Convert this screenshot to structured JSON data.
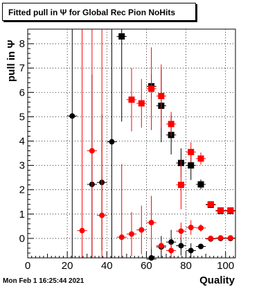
{
  "title": "Fitted pull in  Ψ  for Global Rec Pion NoHits",
  "timestamp": "Mon Feb  1 16:25:44 2021",
  "chart_data": {
    "type": "scatter",
    "title": "Fitted pull in  Ψ  for Global Rec Pion NoHits",
    "xlabel": "Quality",
    "ylabel": "pull in  Ψ",
    "xlim": [
      0,
      105
    ],
    "ylim": [
      -0.8,
      8.6
    ],
    "x_ticks": [
      0,
      20,
      40,
      60,
      80,
      100
    ],
    "y_ticks": [
      0,
      1,
      2,
      3,
      4,
      5,
      6,
      7,
      8
    ],
    "grid": true,
    "series": [
      {
        "color": "#000000",
        "points": [
          {
            "x": 22.5,
            "y": 5.03,
            "marker": "circle",
            "err": 6.0,
            "xerr": 2.5
          },
          {
            "x": 32.5,
            "y": 2.22,
            "marker": "circle",
            "err": 4.5,
            "xerr": 2.5
          },
          {
            "x": 37.5,
            "y": 2.3,
            "marker": "circle",
            "err": 2.8,
            "xerr": 2.5
          },
          {
            "x": 42.5,
            "y": 3.97,
            "marker": "circle",
            "err": 7.0,
            "xerr": 2.5
          },
          {
            "x": 47.5,
            "y": 8.3,
            "marker": "square",
            "err": 3.5,
            "xerr": 2.5
          },
          {
            "x": 62.5,
            "y": 6.25,
            "marker": "square",
            "err": 0.5,
            "xerr": 2.5
          },
          {
            "x": 67.5,
            "y": 5.45,
            "marker": "square",
            "err": 1.5,
            "xerr": 2.5
          },
          {
            "x": 72.5,
            "y": 4.25,
            "marker": "square",
            "err": 0.8,
            "xerr": 2.5
          },
          {
            "x": 77.5,
            "y": 3.1,
            "marker": "square",
            "err": 0.6,
            "xerr": 2.5
          },
          {
            "x": 82.5,
            "y": 3.0,
            "marker": "square",
            "err": 0.6,
            "xerr": 2.5
          },
          {
            "x": 87.5,
            "y": 2.22,
            "marker": "square",
            "err": 0.2,
            "xerr": 2.5
          },
          {
            "x": 92.5,
            "y": 1.38,
            "marker": "square",
            "err": 0.1,
            "xerr": 2.5
          },
          {
            "x": 97.5,
            "y": 1.13,
            "marker": "square",
            "err": 0.06,
            "xerr": 2.5
          },
          {
            "x": 102.5,
            "y": 1.13,
            "marker": "square",
            "err": 0.06,
            "xerr": 2.5
          },
          {
            "x": 62.5,
            "y": -0.85,
            "marker": "circle",
            "err": 0.5,
            "xerr": 2.5
          },
          {
            "x": 67.5,
            "y": -0.35,
            "marker": "circle",
            "err": 0.45,
            "xerr": 2.5
          },
          {
            "x": 72.5,
            "y": -0.15,
            "marker": "circle",
            "err": 0.5,
            "xerr": 2.5
          },
          {
            "x": 77.5,
            "y": -0.3,
            "marker": "circle",
            "err": 0.4,
            "xerr": 2.5
          },
          {
            "x": 82.5,
            "y": -0.5,
            "marker": "circle",
            "err": 0.3,
            "xerr": 2.5
          },
          {
            "x": 87.5,
            "y": -0.33,
            "marker": "circle",
            "err": 0.1,
            "xerr": 2.5
          },
          {
            "x": 92.5,
            "y": -0.02,
            "marker": "circle",
            "err": 0.08,
            "xerr": 2.5
          },
          {
            "x": 97.5,
            "y": 0.0,
            "marker": "circle",
            "err": 0.07,
            "xerr": 2.5
          },
          {
            "x": 102.5,
            "y": 0.0,
            "marker": "circle",
            "err": 0.07,
            "xerr": 2.5
          }
        ]
      },
      {
        "color": "#ff0000",
        "points": [
          {
            "x": 27.5,
            "y": 0.32,
            "marker": "circle",
            "err": 9.0,
            "xerr": 2.5
          },
          {
            "x": 32.5,
            "y": 3.6,
            "marker": "circle",
            "err": 9.0,
            "xerr": 2.5
          },
          {
            "x": 37.5,
            "y": 0.95,
            "marker": "circle",
            "err": 9.0,
            "xerr": 2.5
          },
          {
            "x": 47.5,
            "y": 0.05,
            "marker": "circle",
            "err": 3.0,
            "xerr": 2.5
          },
          {
            "x": 52.5,
            "y": 0.18,
            "marker": "circle",
            "err": 0.9,
            "xerr": 2.5
          },
          {
            "x": 57.5,
            "y": 0.35,
            "marker": "circle",
            "err": 1.0,
            "xerr": 2.5
          },
          {
            "x": 62.5,
            "y": 0.65,
            "marker": "circle",
            "err": 1.1,
            "xerr": 2.5
          },
          {
            "x": 67.5,
            "y": -0.3,
            "marker": "circle",
            "err": 0.2,
            "xerr": 2.5
          },
          {
            "x": 72.5,
            "y": -0.5,
            "marker": "circle",
            "err": 0.3,
            "xerr": 2.5
          },
          {
            "x": 77.5,
            "y": 0.3,
            "marker": "circle",
            "err": 0.35,
            "xerr": 2.5
          },
          {
            "x": 82.5,
            "y": 0.45,
            "marker": "circle",
            "err": 0.3,
            "xerr": 2.5
          },
          {
            "x": 87.5,
            "y": 0.43,
            "marker": "circle",
            "err": 0.15,
            "xerr": 2.5
          },
          {
            "x": 92.5,
            "y": 0.0,
            "marker": "circle",
            "err": 0.08,
            "xerr": 2.5
          },
          {
            "x": 97.5,
            "y": 0.02,
            "marker": "circle",
            "err": 0.06,
            "xerr": 2.5
          },
          {
            "x": 102.5,
            "y": 0.02,
            "marker": "circle",
            "err": 0.06,
            "xerr": 2.5
          },
          {
            "x": 52.5,
            "y": 5.7,
            "marker": "square",
            "err": 1.3,
            "xerr": 2.5
          },
          {
            "x": 57.5,
            "y": 5.55,
            "marker": "square",
            "err": 1.0,
            "xerr": 2.5
          },
          {
            "x": 62.5,
            "y": 6.15,
            "marker": "square",
            "err": 1.7,
            "xerr": 2.5
          },
          {
            "x": 67.5,
            "y": 5.85,
            "marker": "square",
            "err": 1.3,
            "xerr": 2.5
          },
          {
            "x": 72.5,
            "y": 4.7,
            "marker": "square",
            "err": 0.5,
            "xerr": 2.5
          },
          {
            "x": 77.5,
            "y": 2.2,
            "marker": "square",
            "err": 1.0,
            "xerr": 2.5
          },
          {
            "x": 82.5,
            "y": 3.55,
            "marker": "square",
            "err": 0.4,
            "xerr": 2.5
          },
          {
            "x": 87.5,
            "y": 3.28,
            "marker": "square",
            "err": 0.25,
            "xerr": 2.5
          },
          {
            "x": 92.5,
            "y": 1.4,
            "marker": "square",
            "err": 0.1,
            "xerr": 2.5
          },
          {
            "x": 97.5,
            "y": 1.15,
            "marker": "square",
            "err": 0.07,
            "xerr": 2.5
          },
          {
            "x": 102.5,
            "y": 1.15,
            "marker": "square",
            "err": 0.07,
            "xerr": 2.5
          }
        ]
      }
    ]
  }
}
